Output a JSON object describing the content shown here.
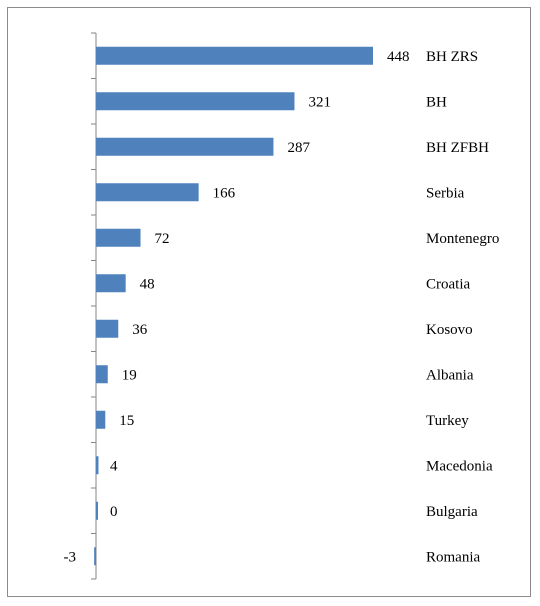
{
  "chart_data": {
    "type": "bar",
    "orientation": "horizontal",
    "categories": [
      "BH ZRS",
      "BH",
      "BH ZFBH",
      "Serbia",
      "Montenegro",
      "Croatia",
      "Kosovo",
      "Albania",
      "Turkey",
      "Macedonia",
      "Bulgaria",
      "Romania"
    ],
    "values": [
      448,
      321,
      287,
      166,
      72,
      48,
      36,
      19,
      15,
      4,
      0,
      -3
    ],
    "value_labels": [
      "448",
      "321",
      "287",
      "166",
      "72",
      "48",
      "36",
      "19",
      "15",
      "4",
      "0",
      "-3"
    ],
    "title": "",
    "xlabel": "",
    "ylabel": "",
    "xlim": [
      -3,
      448
    ],
    "grid": false,
    "legend": "none",
    "bar_color": "#4f81bd",
    "axis_color": "#868686"
  }
}
